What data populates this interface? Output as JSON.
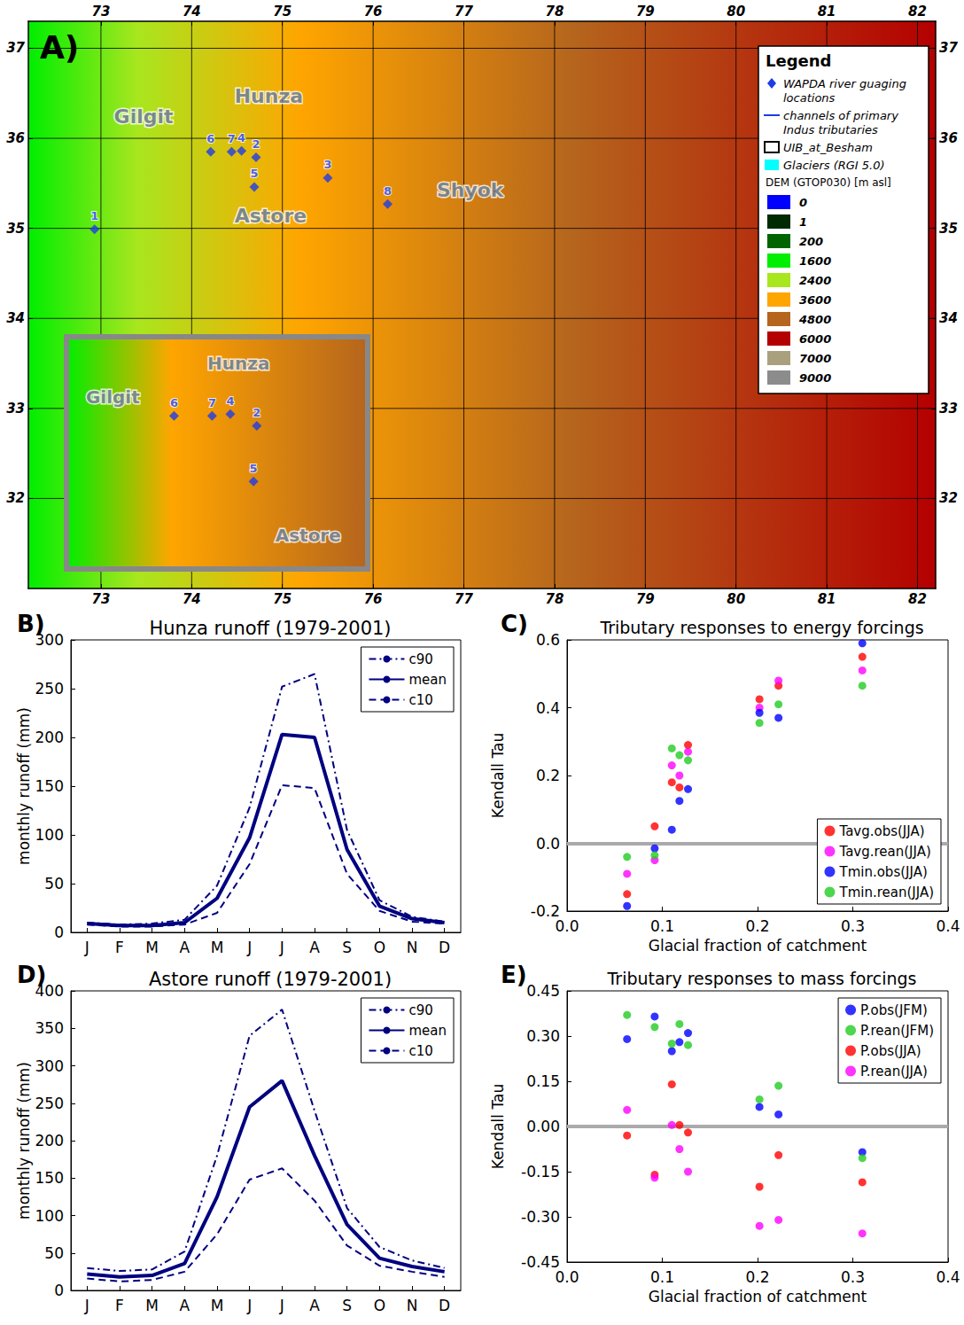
{
  "chart_data": [
    {
      "type": "map",
      "panel_label": "A)",
      "xlim": [
        72.2,
        82.2
      ],
      "ylim": [
        31.0,
        37.3
      ],
      "xticks": [
        73,
        74,
        75,
        76,
        77,
        78,
        79,
        80,
        81,
        82
      ],
      "yticks": [
        32,
        33,
        34,
        35,
        36,
        37
      ],
      "grid": true,
      "legend": "upper right",
      "region_labels": [
        {
          "text": "Hunza",
          "x": 74.85,
          "y": 36.47
        },
        {
          "text": "Gilgit",
          "x": 73.47,
          "y": 36.24
        },
        {
          "text": "Astore",
          "x": 74.87,
          "y": 35.14
        },
        {
          "text": "Shyok",
          "x": 77.07,
          "y": 35.42
        }
      ],
      "series": [
        {
          "name": "WAPDA river guaging locations",
          "color": "#1e3ce6",
          "marker": "diamond",
          "points": [
            {
              "label": "1",
              "x": 72.93,
              "y": 34.99
            },
            {
              "label": "2",
              "x": 74.71,
              "y": 35.79
            },
            {
              "label": "3",
              "x": 75.5,
              "y": 35.56
            },
            {
              "label": "4",
              "x": 74.55,
              "y": 35.86
            },
            {
              "label": "5",
              "x": 74.69,
              "y": 35.46
            },
            {
              "label": "6",
              "x": 74.21,
              "y": 35.85
            },
            {
              "label": "7",
              "x": 74.44,
              "y": 35.85
            },
            {
              "label": "8",
              "x": 76.16,
              "y": 35.27
            }
          ]
        }
      ],
      "legend_title": "Legend",
      "legend_items": [
        {
          "label": "WAPDA river guaging locations",
          "marker": "diamond",
          "color": "#1e3ce6"
        },
        {
          "label": "channels of primary Indus tributaries",
          "marker": "line",
          "color": "#1e3ce6"
        },
        {
          "label": "UIB_at_Besham",
          "marker": "box",
          "color": "#000000"
        },
        {
          "label": "Glaciers (RGI 5.0)",
          "marker": "patch",
          "color": "#00ffff"
        }
      ],
      "dem_scale": {
        "title": "DEM (GTOP030) [m asl]",
        "levels": [
          0,
          1,
          200,
          1600,
          2400,
          3600,
          4800,
          6000,
          7000,
          9000
        ],
        "colors": [
          "#0000ff",
          "#002a00",
          "#006400",
          "#00ee00",
          "#a8e61e",
          "#ffa500",
          "#b5651d",
          "#b40000",
          "#a9a17e",
          "#8c8c8c"
        ]
      },
      "inset": {
        "xlim": [
          73.56,
          75.38
        ],
        "ylim": [
          34.94,
          36.32
        ],
        "region_labels": [
          {
            "text": "Hunza",
            "x": 74.6,
            "y": 36.16
          },
          {
            "text": "Gilgit",
            "x": 73.84,
            "y": 35.96
          },
          {
            "text": "Astore",
            "x": 75.02,
            "y": 35.14
          }
        ],
        "gauges": [
          "6",
          "7",
          "4",
          "2",
          "5"
        ]
      }
    },
    {
      "type": "line",
      "panel_label": "B)",
      "title": "Hunza runoff (1979-2001)",
      "ylabel": "monthly runoff (mm)",
      "categories": [
        "J",
        "F",
        "M",
        "A",
        "M",
        "J",
        "J",
        "A",
        "S",
        "O",
        "N",
        "D"
      ],
      "ylim": [
        0,
        300
      ],
      "yticks": [
        0,
        50,
        100,
        150,
        200,
        250,
        300
      ],
      "legend": "upper right",
      "series": [
        {
          "name": "c90",
          "color": "#000080",
          "line_style": "dashdot",
          "values": [
            10,
            8,
            9,
            13,
            48,
            128,
            252,
            265,
            105,
            33,
            16,
            11
          ]
        },
        {
          "name": "mean",
          "color": "#000080",
          "line_style": "solid",
          "values": [
            9,
            7,
            7,
            10,
            35,
            97,
            203,
            200,
            85,
            27,
            14,
            10
          ]
        },
        {
          "name": "c10",
          "color": "#000080",
          "line_style": "dashed",
          "values": [
            8,
            6,
            6,
            8,
            20,
            70,
            151,
            148,
            60,
            22,
            11,
            9
          ]
        }
      ]
    },
    {
      "type": "scatter",
      "panel_label": "C)",
      "title": "Tributary responses to energy forcings",
      "xlabel": "Glacial fraction of catchment",
      "ylabel": "Kendall Tau",
      "x": [
        0.063,
        0.092,
        0.11,
        0.118,
        0.127,
        0.202,
        0.222,
        0.31
      ],
      "xlim": [
        0,
        0.4
      ],
      "xticks": [
        {
          "value": 0,
          "label": "0.0"
        },
        0.1,
        0.2,
        0.3,
        0.4
      ],
      "ylim": [
        -0.2,
        0.6
      ],
      "yticks": [
        -0.2,
        {
          "value": 0,
          "label": "0.0"
        },
        0.2,
        0.4,
        0.6
      ],
      "zero_line": 0,
      "legend": "lower right",
      "marker": "circle",
      "series": [
        {
          "name": "Tavg.obs(JJA)",
          "color": "#ff0000",
          "values": [
            -0.15,
            0.05,
            0.18,
            0.165,
            0.29,
            0.425,
            0.465,
            0.55
          ]
        },
        {
          "name": "Tavg.rean(JJA)",
          "color": "#ff00ff",
          "values": [
            -0.09,
            -0.05,
            0.23,
            0.2,
            0.27,
            0.4,
            0.48,
            0.51
          ]
        },
        {
          "name": "Tmin.obs(JJA)",
          "color": "#0000ff",
          "values": [
            -0.185,
            -0.015,
            0.04,
            0.125,
            0.16,
            0.385,
            0.37,
            0.59
          ]
        },
        {
          "name": "Tmin.rean(JJA)",
          "color": "#22cc22",
          "values": [
            -0.04,
            -0.035,
            0.28,
            0.26,
            0.245,
            0.355,
            0.41,
            0.465
          ]
        }
      ]
    },
    {
      "type": "line",
      "panel_label": "D)",
      "title": "Astore runoff (1979-2001)",
      "ylabel": "monthly runoff (mm)",
      "categories": [
        "J",
        "F",
        "M",
        "A",
        "M",
        "J",
        "J",
        "A",
        "S",
        "O",
        "N",
        "D"
      ],
      "ylim": [
        0,
        400
      ],
      "yticks": [
        0,
        50,
        100,
        150,
        200,
        250,
        300,
        350,
        400
      ],
      "legend": "upper right",
      "series": [
        {
          "name": "c90",
          "color": "#000080",
          "line_style": "dashdot",
          "values": [
            30,
            26,
            28,
            52,
            180,
            340,
            375,
            240,
            110,
            58,
            40,
            30
          ]
        },
        {
          "name": "mean",
          "color": "#000080",
          "line_style": "solid",
          "values": [
            22,
            18,
            20,
            36,
            125,
            245,
            280,
            180,
            88,
            43,
            32,
            25
          ]
        },
        {
          "name": "c10",
          "color": "#000080",
          "line_style": "dashed",
          "values": [
            16,
            12,
            14,
            25,
            75,
            148,
            163,
            120,
            60,
            33,
            25,
            18
          ]
        }
      ]
    },
    {
      "type": "scatter",
      "panel_label": "E)",
      "title": "Tributary responses to mass forcings",
      "xlabel": "Glacial fraction of catchment",
      "ylabel": "Kendall Tau",
      "x": [
        0.063,
        0.092,
        0.11,
        0.118,
        0.127,
        0.202,
        0.222,
        0.31
      ],
      "xlim": [
        0,
        0.4
      ],
      "xticks": [
        {
          "value": 0,
          "label": "0.0"
        },
        0.1,
        0.2,
        0.3,
        0.4
      ],
      "ylim": [
        -0.45,
        0.45
      ],
      "yticks": [
        -0.45,
        {
          "value": -0.3,
          "label": "-0.30"
        },
        -0.15,
        {
          "value": 0,
          "label": "0.00"
        },
        0.15,
        {
          "value": 0.3,
          "label": "0.30"
        },
        0.45
      ],
      "zero_line": 0,
      "legend": "upper right",
      "marker": "circle",
      "series": [
        {
          "name": "P.obs(JFM)",
          "color": "#0000ff",
          "values": [
            0.29,
            0.365,
            0.25,
            0.28,
            0.31,
            0.065,
            0.04,
            -0.085
          ]
        },
        {
          "name": "P.rean(JFM)",
          "color": "#22cc22",
          "values": [
            0.37,
            0.33,
            0.275,
            0.34,
            0.27,
            0.09,
            0.135,
            -0.105
          ]
        },
        {
          "name": "P.obs(JJA)",
          "color": "#ff0000",
          "values": [
            -0.03,
            -0.16,
            0.14,
            0.005,
            -0.02,
            -0.2,
            -0.095,
            -0.185
          ]
        },
        {
          "name": "P.rean(JJA)",
          "color": "#ff00ff",
          "values": [
            0.055,
            -0.17,
            0.005,
            -0.075,
            -0.15,
            -0.33,
            -0.31,
            -0.355
          ]
        }
      ]
    }
  ]
}
